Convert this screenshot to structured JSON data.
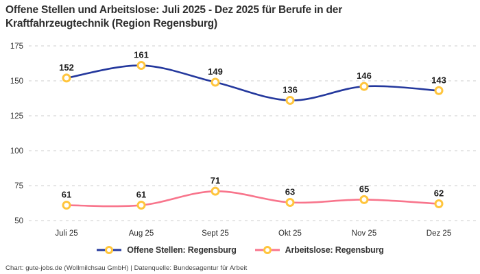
{
  "title": "Offene Stellen und Arbeitslose: Juli 2025 - Dez 2025 für Berufe in der Kraftfahrzeugtechnik (Region Regensburg)",
  "footer": "Chart: gute-jobs.de (Wollmilchsau GmbH) | Datenquelle: Bundesagentur für Arbeit",
  "legend": {
    "items": [
      {
        "label": "Offene Stellen: Regensburg"
      },
      {
        "label": "Arbeitslose: Regensburg"
      }
    ]
  },
  "chart_data": {
    "type": "line",
    "title": "Offene Stellen und Arbeitslose: Juli 2025 - Dez 2025 für Berufe in der Kraftfahrzeugtechnik (Region Regensburg)",
    "categories": [
      "Juli 25",
      "Aug 25",
      "Sept 25",
      "Okt 25",
      "Nov 25",
      "Dez 25"
    ],
    "series": [
      {
        "name": "Offene Stellen: Regensburg",
        "values": [
          152,
          161,
          149,
          136,
          146,
          143
        ],
        "color": "#24389d"
      },
      {
        "name": "Arbeitslose: Regensburg",
        "values": [
          61,
          61,
          71,
          63,
          65,
          62
        ],
        "color": "#f8758c"
      }
    ],
    "ylim": [
      50,
      175
    ],
    "yticks": [
      50,
      75,
      100,
      125,
      150,
      175
    ],
    "grid": "horizontal-dashed",
    "legend_position": "bottom",
    "marker_color": "#ffc53d",
    "marker_fill": "#ffffff",
    "smooth": true,
    "data_labels": true
  }
}
